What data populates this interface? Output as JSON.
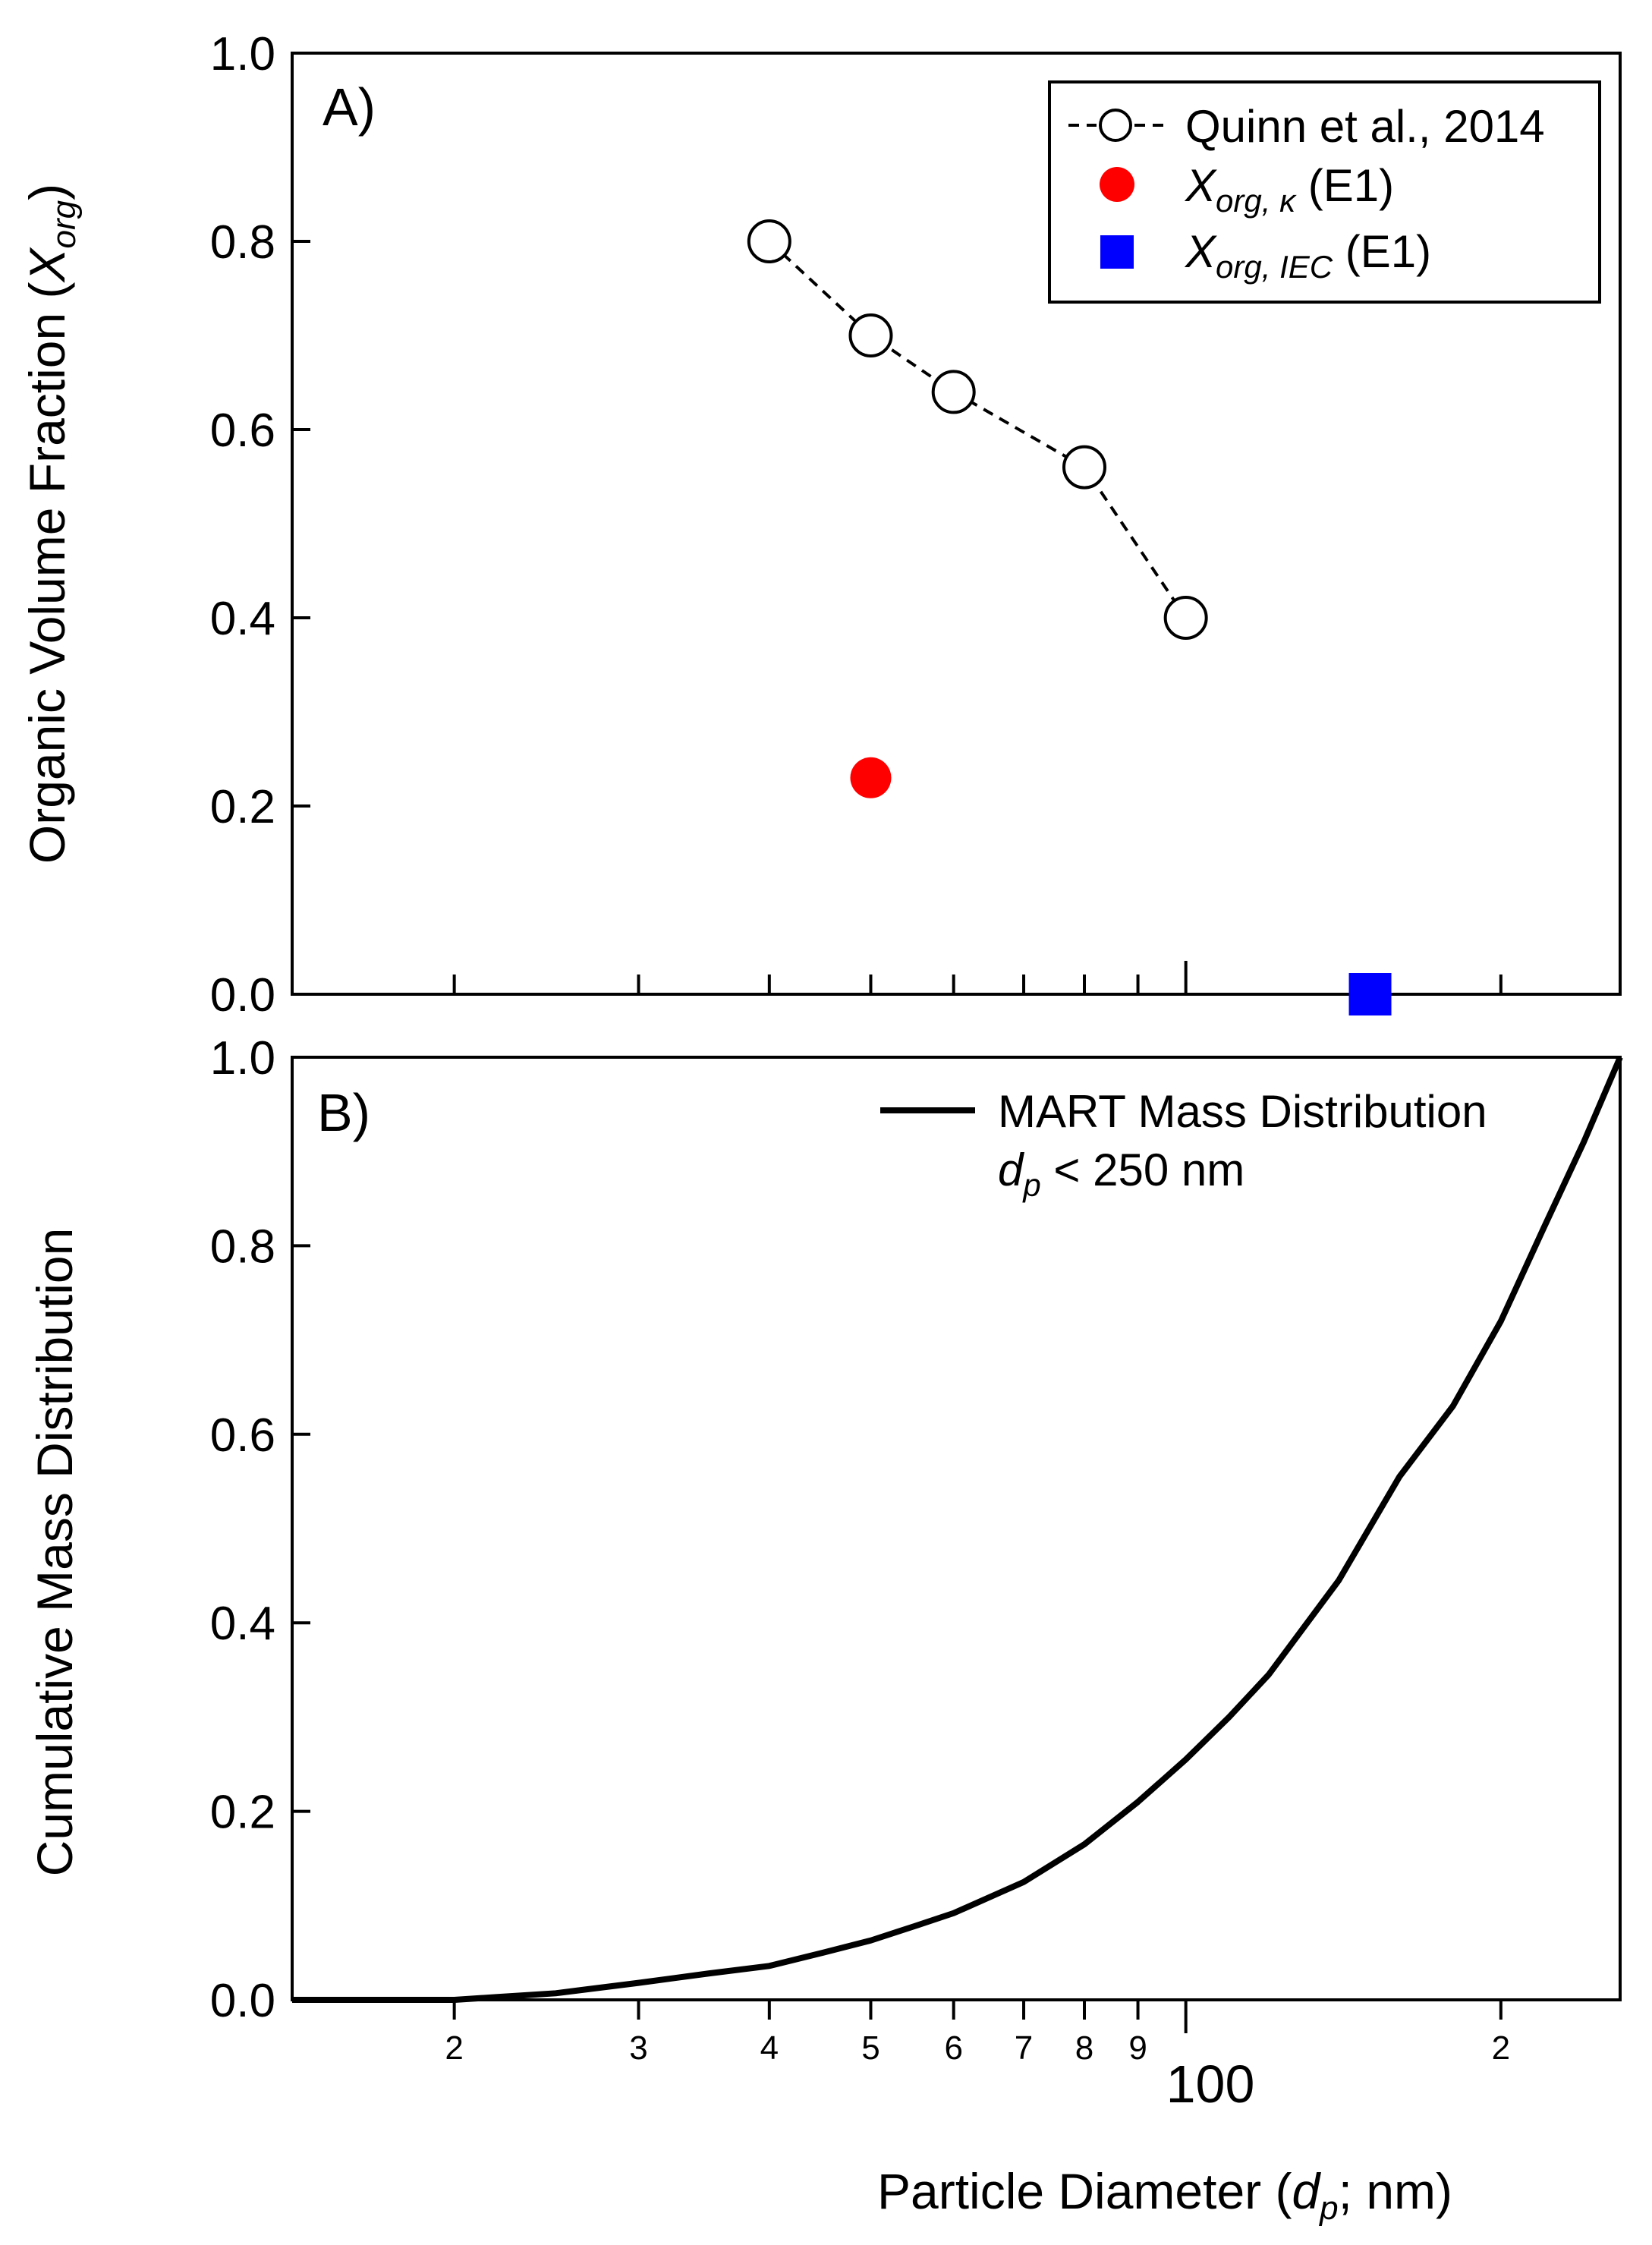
{
  "chart_data": [
    {
      "panel": "A",
      "type": "scatter",
      "panel_label": "A)",
      "ylabel_main": "Organic Volume Fraction (",
      "ylabel_var": "X",
      "ylabel_sub": "org",
      "ylabel_end": ")",
      "ylim": [
        0.0,
        1.0
      ],
      "yticks": [
        "0.0",
        "0.2",
        "0.4",
        "0.6",
        "0.8",
        "1.0"
      ],
      "xscale": "log",
      "xlim": [
        14,
        260
      ],
      "series": [
        {
          "name": "Quinn et al., 2014",
          "style": "open-circle-dashed",
          "x": [
            40,
            50,
            60,
            80,
            100
          ],
          "y": [
            0.8,
            0.7,
            0.64,
            0.56,
            0.4
          ]
        },
        {
          "name": "Xorg, κ (E1)",
          "style": "filled-circle",
          "color": "#ff0000",
          "x": [
            50
          ],
          "y": [
            0.23
          ]
        },
        {
          "name": "Xorg, IEC (E1)",
          "style": "filled-square",
          "color": "#0000ff",
          "x": [
            150
          ],
          "y": [
            0.0
          ]
        }
      ],
      "legend": {
        "position": "top-right",
        "quinn": "Quinn et al., 2014",
        "kappa_var": "X",
        "kappa_sub": "org, κ",
        "kappa_suffix": " (E1)",
        "iec_var": "X",
        "iec_sub": "org, IEC",
        "iec_suffix": " (E1)"
      }
    },
    {
      "panel": "B",
      "type": "line",
      "panel_label": "B)",
      "ylabel": "Cumulative Mass Distribution",
      "ylim": [
        0.0,
        1.0
      ],
      "yticks": [
        "0.0",
        "0.2",
        "0.4",
        "0.6",
        "0.8",
        "1.0"
      ],
      "xscale": "log",
      "xlim": [
        14,
        260
      ],
      "xticks_minor_labels": [
        {
          "value": 20,
          "label": "2"
        },
        {
          "value": 30,
          "label": "3"
        },
        {
          "value": 40,
          "label": "4"
        },
        {
          "value": 50,
          "label": "5"
        },
        {
          "value": 60,
          "label": "6"
        },
        {
          "value": 70,
          "label": "7"
        },
        {
          "value": 80,
          "label": "8"
        },
        {
          "value": 90,
          "label": "9"
        },
        {
          "value": 200,
          "label": "2"
        }
      ],
      "xtick_major_label": "100",
      "xlabel_main": "Particle Diameter (",
      "xlabel_var": "d",
      "xlabel_sub": "p",
      "xlabel_end": "; nm)",
      "series": [
        {
          "name": "MART Mass Distribution",
          "x": [
            14,
            16,
            18,
            20,
            22,
            25,
            30,
            35,
            40,
            45,
            50,
            55,
            60,
            70,
            80,
            90,
            100,
            110,
            120,
            140,
            160,
            180,
            200,
            220,
            240,
            260
          ],
          "y": [
            0.0,
            0.0,
            0.0,
            0.0,
            0.003,
            0.007,
            0.018,
            0.028,
            0.036,
            0.05,
            0.063,
            0.078,
            0.092,
            0.125,
            0.165,
            0.21,
            0.255,
            0.3,
            0.345,
            0.445,
            0.555,
            0.63,
            0.72,
            0.82,
            0.91,
            1.0
          ]
        }
      ],
      "legend": {
        "position": "top-right",
        "line1": "MART Mass Distribution",
        "line2_var": "d",
        "line2_sub": "p",
        "line2_rest": " < 250 nm"
      }
    }
  ]
}
